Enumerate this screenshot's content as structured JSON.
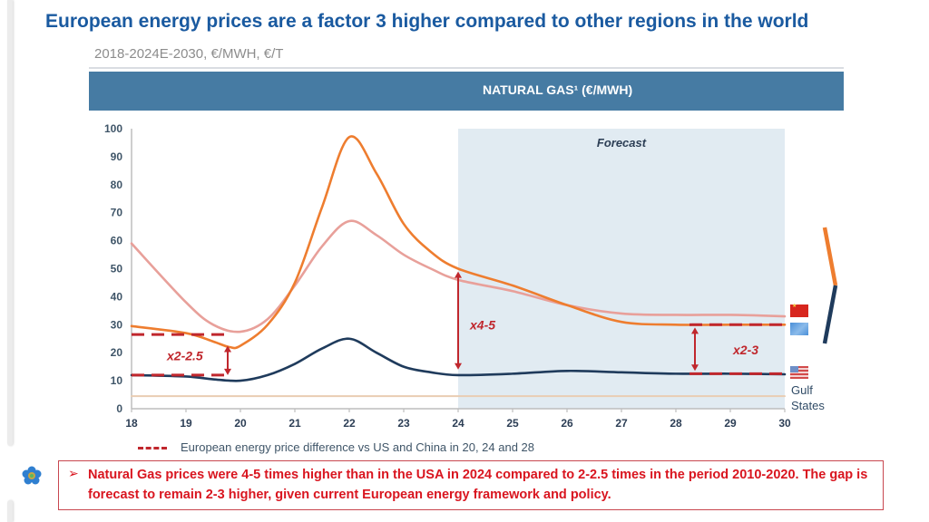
{
  "slide": {
    "title": "European energy prices are a factor 3 higher compared to other regions in the world",
    "subtitle": "2018-2024E-2030, €/MWH, €/T",
    "panel_header": "NATURAL GAS¹ (€/MWH)",
    "logo_icon": "flower-logo-icon",
    "note": {
      "bullet": "➢",
      "text": "Natural Gas prices were 4-5 times higher than in the USA in 2024 compared to 2-2.5 times in the period 2010-2020. The gap is forecast to remain 2-3 higher, given current European energy framework and policy."
    },
    "region_labels": {
      "china_flag": "china-flag-icon",
      "eu_flag": "eu-flag-icon",
      "us_flag": "us-flag-icon",
      "gulf": "Gulf States"
    },
    "colors": {
      "title": "#1a5aa0",
      "header_band": "#467ba3",
      "europe": "#ee7d2f",
      "china": "#e8a09a",
      "us": "#1f3b5c",
      "gulf": "#e9cdb3",
      "annotation": "#c0272d",
      "forecast_shade": "#e1ebf2"
    }
  },
  "chart_data": {
    "type": "line",
    "title": "NATURAL GAS¹ (€/MWH)",
    "xlabel": "",
    "ylabel": "€/MWH",
    "xlim": [
      18,
      30
    ],
    "ylim": [
      0,
      100
    ],
    "x_ticks": [
      "18",
      "19",
      "20",
      "21",
      "22",
      "23",
      "24",
      "25",
      "26",
      "27",
      "28",
      "29",
      "30"
    ],
    "y_ticks": [
      "0",
      "10",
      "20",
      "30",
      "40",
      "50",
      "60",
      "70",
      "80",
      "90",
      "100"
    ],
    "grid": false,
    "forecast_region": {
      "from": 24,
      "to": 30,
      "label": "Forecast"
    },
    "series": [
      {
        "name": "China",
        "color": "#e8a09a",
        "x": [
          18,
          19,
          19.5,
          20,
          20.5,
          21,
          21.5,
          22,
          22.5,
          23,
          23.5,
          24,
          25,
          26,
          27,
          28,
          29,
          30
        ],
        "values": [
          59,
          38,
          30,
          27.5,
          32,
          44,
          58,
          67,
          62,
          55,
          50,
          46,
          42,
          37,
          34,
          33.5,
          33.5,
          33
        ]
      },
      {
        "name": "Europe",
        "color": "#ee7d2f",
        "x": [
          18,
          19,
          19.5,
          19.8,
          20,
          20.5,
          21,
          21.5,
          22,
          22.5,
          23,
          23.5,
          24,
          25,
          26,
          27,
          28,
          29,
          30
        ],
        "values": [
          29.5,
          27,
          24,
          22,
          22.5,
          30,
          45,
          72,
          97,
          84,
          66,
          56,
          50,
          44,
          37,
          31,
          30,
          30,
          30
        ]
      },
      {
        "name": "US",
        "color": "#1f3b5c",
        "x": [
          18,
          19,
          19.5,
          20,
          20.5,
          21,
          21.5,
          22,
          22.5,
          23,
          23.5,
          24,
          25,
          26,
          27,
          28,
          29,
          30
        ],
        "values": [
          12,
          11.5,
          10.5,
          10,
          12,
          16,
          21.5,
          25,
          20,
          15,
          13,
          12,
          12.5,
          13.5,
          13,
          12.5,
          12.5,
          12.3
        ]
      },
      {
        "name": "Gulf States",
        "color": "#e9cdb3",
        "x": [
          18,
          30
        ],
        "values": [
          4.5,
          4.5
        ]
      }
    ],
    "annotations": [
      {
        "label": "x2-2.5",
        "x": 19.75,
        "y_low": 12,
        "y_high": 26.5,
        "dash_from": 18
      },
      {
        "label": "x4-5",
        "x": 24,
        "y_low": 14,
        "y_high": 49
      },
      {
        "label": "x2-3",
        "x": 28.35,
        "y_low": 12.5,
        "y_high": 30,
        "dash_to": 30
      }
    ],
    "legend": {
      "position": "bottom-left",
      "entries": [
        {
          "label": "European energy price difference vs US and China in 20, 24 and 28",
          "style": "dashed-red"
        }
      ]
    }
  }
}
